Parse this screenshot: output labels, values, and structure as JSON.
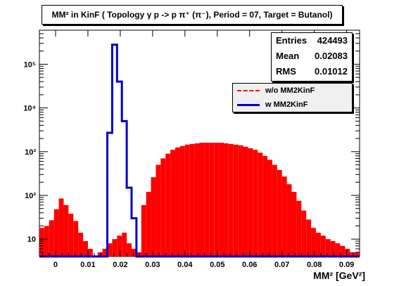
{
  "chart_data": {
    "type": "bar",
    "title": "MM² in KinF ( Topology γ p -> p π⁺ (π⁻), Period = 07, Target = Butanol)",
    "xlabel": "MM² [GeV²]",
    "ylabel": "",
    "yscale": "log",
    "xlim": [
      -0.005,
      0.094
    ],
    "ylim": [
      4,
      600000
    ],
    "xticks": [
      "0",
      "0.01",
      "0.02",
      "0.03",
      "0.04",
      "0.05",
      "0.06",
      "0.07",
      "0.08",
      "0.09"
    ],
    "xtick_values": [
      0,
      0.01,
      0.02,
      0.03,
      0.04,
      0.05,
      0.06,
      0.07,
      0.08,
      0.09
    ],
    "yticks": [
      "10",
      "10²",
      "10³",
      "10⁴",
      "10⁵"
    ],
    "ytick_values": [
      10,
      100,
      1000,
      10000,
      100000
    ],
    "bin_width": 0.0015,
    "x": [
      -0.00425,
      -0.00275,
      -0.00125,
      0.00025,
      0.00175,
      0.00325,
      0.00475,
      0.00625,
      0.00775,
      0.00925,
      0.01075,
      0.01225,
      0.01375,
      0.01525,
      0.01675,
      0.01825,
      0.01975,
      0.02125,
      0.02275,
      0.02425,
      0.02575,
      0.02725,
      0.02875,
      0.03025,
      0.03175,
      0.03325,
      0.03475,
      0.03625,
      0.03775,
      0.03925,
      0.04075,
      0.04225,
      0.04375,
      0.04525,
      0.04675,
      0.04825,
      0.04975,
      0.05125,
      0.05275,
      0.05425,
      0.05575,
      0.05725,
      0.05875,
      0.06025,
      0.06175,
      0.06325,
      0.06475,
      0.06625,
      0.06775,
      0.06925,
      0.07075,
      0.07225,
      0.07375,
      0.07525,
      0.07675,
      0.07825,
      0.07975,
      0.08125,
      0.08275,
      0.08425,
      0.08575,
      0.08725,
      0.08875,
      0.09025,
      0.09175,
      0.09325
    ],
    "series": [
      {
        "name": "w/o MM2KinF",
        "color": "#ff0000",
        "values": [
          18,
          20,
          27,
          48,
          85,
          60,
          38,
          26,
          14,
          9,
          6,
          4,
          5,
          6,
          8,
          10,
          12,
          14,
          8,
          6,
          5,
          60,
          120,
          260,
          500,
          700,
          900,
          1100,
          1250,
          1350,
          1450,
          1500,
          1550,
          1600,
          1600,
          1600,
          1600,
          1600,
          1550,
          1500,
          1450,
          1400,
          1300,
          1200,
          1100,
          950,
          800,
          650,
          500,
          380,
          270,
          180,
          120,
          75,
          45,
          28,
          18,
          14,
          12,
          10,
          9,
          8,
          7,
          6,
          5,
          5
        ]
      },
      {
        "name": "w MM2KinF",
        "color": "#0000cc",
        "values": [
          0,
          0,
          0,
          0,
          0,
          0,
          0,
          0,
          0,
          0,
          0,
          0,
          0,
          0,
          2700,
          280000,
          40000,
          5000,
          150,
          30,
          0,
          0,
          0,
          0,
          0,
          0,
          0,
          0,
          0,
          0,
          0,
          0,
          0,
          0,
          0,
          0,
          0,
          0,
          0,
          0,
          0,
          0,
          0,
          0,
          0,
          0,
          0,
          0,
          0,
          0,
          0,
          0,
          0,
          0,
          0,
          0,
          0,
          0,
          0,
          0,
          0,
          0,
          0,
          0,
          0,
          0
        ]
      }
    ]
  },
  "stats": {
    "entries_label": "Entries",
    "entries_value": "424493",
    "mean_label": "Mean",
    "mean_value": "0.02083",
    "rms_label": "RMS",
    "rms_value": "0.01012"
  },
  "legend": {
    "item1": "w/o MM2KinF",
    "item2": "w MM2KinF"
  }
}
